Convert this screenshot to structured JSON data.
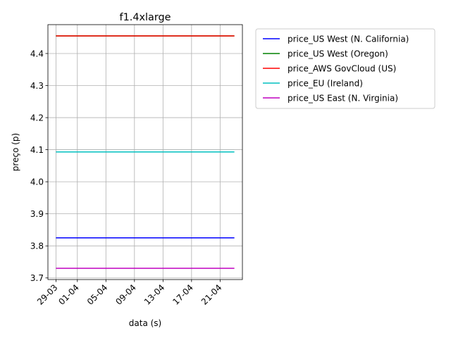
{
  "chart_data": {
    "type": "line",
    "title": "f1.4xlarge",
    "xlabel": "data (s)",
    "ylabel": "preço (p)",
    "x": [
      "29-03",
      "23-04"
    ],
    "x_ticks": [
      "29-03",
      "01-04",
      "05-04",
      "09-04",
      "13-04",
      "17-04",
      "21-04"
    ],
    "y_ticks": [
      "3.7",
      "3.8",
      "3.9",
      "4.0",
      "4.1",
      "4.2",
      "4.3",
      "4.4"
    ],
    "ylim": [
      3.695,
      4.49
    ],
    "grid": true,
    "legend_position": "outside right, top",
    "series": [
      {
        "name": "price_US West (N. California)",
        "color": "#0000ff",
        "values": [
          3.825,
          3.825
        ]
      },
      {
        "name": "price_US West (Oregon)",
        "color": "#008000",
        "values": [
          4.455,
          4.455
        ]
      },
      {
        "name": "price_AWS GovCloud (US)",
        "color": "#ff0000",
        "values": [
          4.455,
          4.455
        ]
      },
      {
        "name": "price_EU (Ireland)",
        "color": "#00bfbf",
        "values": [
          4.093,
          4.093
        ]
      },
      {
        "name": "price_US East (N. Virginia)",
        "color": "#bf00bf",
        "values": [
          3.73,
          3.73
        ]
      }
    ]
  }
}
